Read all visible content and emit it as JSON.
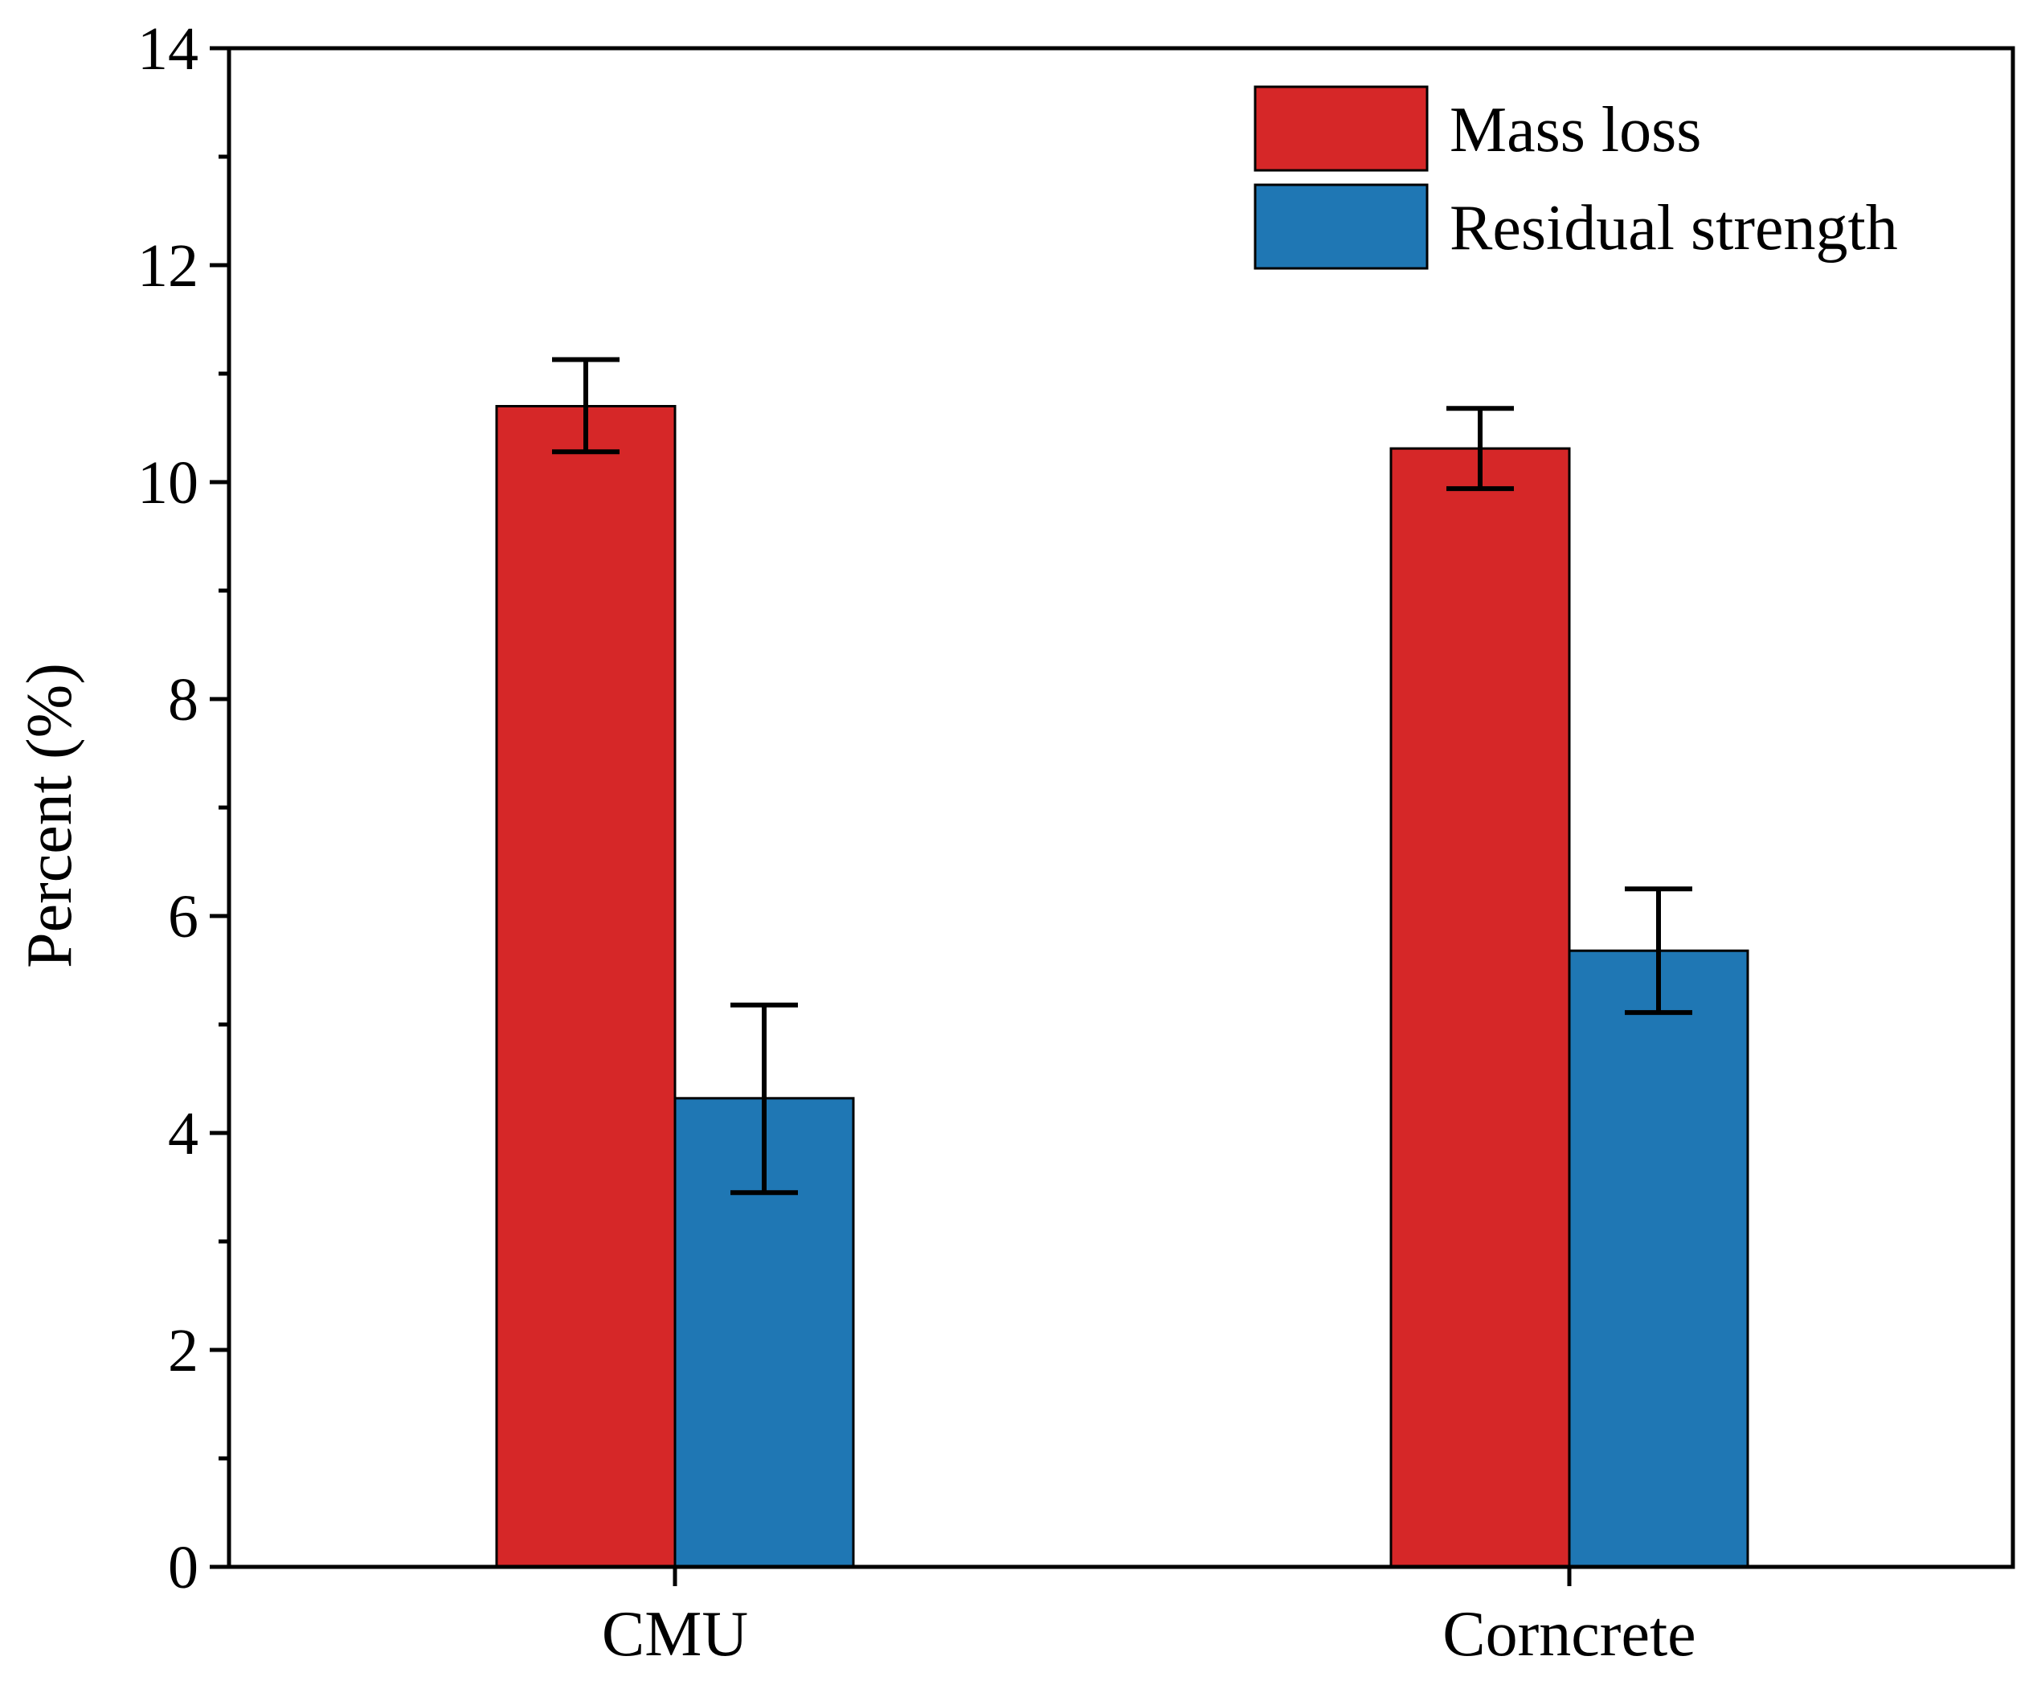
{
  "chart_data": {
    "type": "bar",
    "title": "",
    "xlabel": "",
    "ylabel": "Percent (%)",
    "categories": [
      "CMU",
      "Corncrete"
    ],
    "series": [
      {
        "name": "Mass loss",
        "color": "#d62728",
        "values": [
          10.7,
          10.31
        ],
        "errors": [
          [
            10.28,
            11.13
          ],
          [
            9.94,
            10.68
          ]
        ]
      },
      {
        "name": "Residual strength",
        "color": "#1f77b4",
        "values": [
          4.32,
          5.68
        ],
        "errors": [
          [
            3.45,
            5.18
          ],
          [
            5.11,
            6.25
          ]
        ]
      }
    ],
    "ylim": [
      0,
      14
    ],
    "yticks": [
      0,
      2,
      4,
      6,
      8,
      10,
      12,
      14
    ],
    "yticklabels": [
      "0",
      "2",
      "4",
      "6",
      "8",
      "10",
      "12",
      "14"
    ],
    "grid": false,
    "legend_position": "top-right"
  }
}
